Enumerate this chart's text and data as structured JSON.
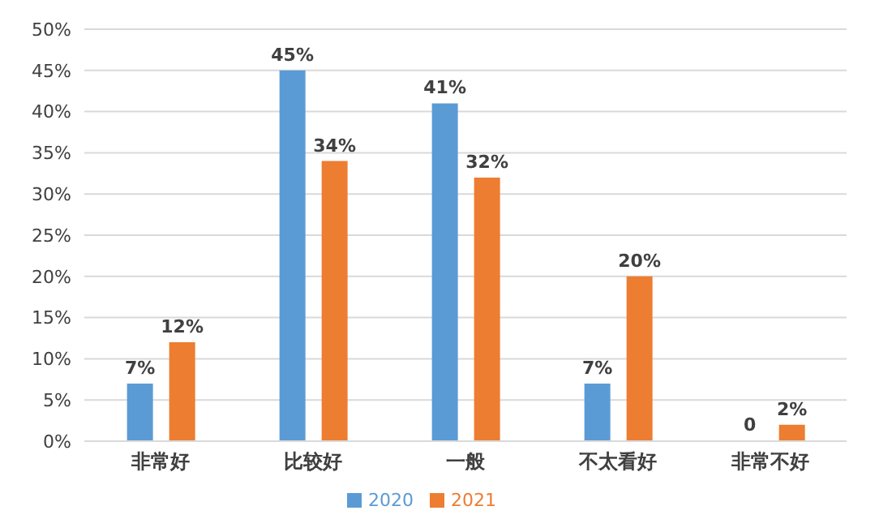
{
  "chart_data": {
    "type": "bar",
    "categories": [
      "非常好",
      "比较好",
      "一般",
      "不太看好",
      "非常不好"
    ],
    "series": [
      {
        "name": "2020",
        "color": "#5b9bd5",
        "values": [
          7,
          45,
          41,
          7,
          0
        ],
        "value_labels": [
          "7%",
          "45%",
          "41%",
          "7%",
          "0"
        ]
      },
      {
        "name": "2021",
        "color": "#ed7d31",
        "values": [
          12,
          34,
          32,
          20,
          2
        ],
        "value_labels": [
          "12%",
          "34%",
          "32%",
          "20%",
          "2%"
        ]
      }
    ],
    "ylim": [
      0,
      50
    ],
    "yticks": [
      {
        "value": 0,
        "label": "0%"
      },
      {
        "value": 5,
        "label": "5%"
      },
      {
        "value": 10,
        "label": "10%"
      },
      {
        "value": 15,
        "label": "15%"
      },
      {
        "value": 20,
        "label": "20%"
      },
      {
        "value": 25,
        "label": "25%"
      },
      {
        "value": 30,
        "label": "30%"
      },
      {
        "value": 35,
        "label": "35%"
      },
      {
        "value": 40,
        "label": "40%"
      },
      {
        "value": 45,
        "label": "45%"
      },
      {
        "value": 50,
        "label": "50%"
      }
    ],
    "grid": "y",
    "legend": "bottom"
  }
}
